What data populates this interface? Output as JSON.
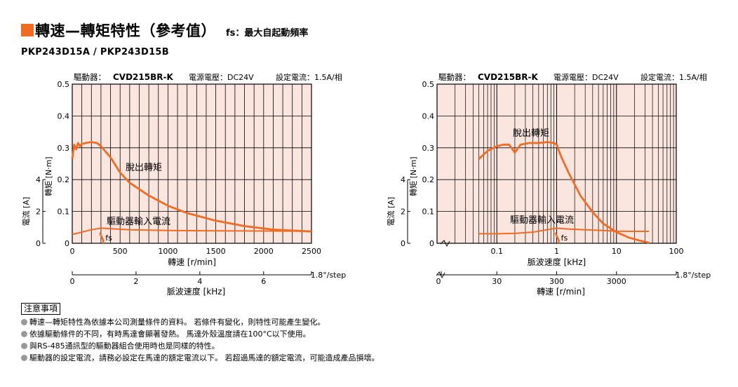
{
  "header": {
    "title": "轉速—轉矩特性（參考值）",
    "fs_note": "fs：最大自起動頻率",
    "model": "PKP243D15A / PKP243D15B",
    "accent": "#f36b21"
  },
  "notes": {
    "title": "注意事項",
    "items": [
      "轉速—轉矩特性為依據本公司測量條件的資料。 若條件有變化，則特性可能產生變化。",
      "依據驅動條件的不同，有時馬達會顯著發熱。 馬達外殼溫度請在100°C以下使用。",
      "與RS-485通訊型的驅動器組合使用時也是同樣的特性。",
      "驅動器的設定電流，請務必設定在馬達的額定電流以下。 若超過馬達的額定電流，可能造成產品損壞。"
    ]
  },
  "chart_data": [
    {
      "type": "line",
      "cond_driver_label": "驅動器：",
      "cond_driver": "CVD215BR-K",
      "cond_voltage": "電源電壓：DC24V",
      "cond_current": "設定電流：1.5A/相",
      "xlabel": "轉速 [r/min]",
      "ylabel": "轉矩 [N·m]",
      "ylabel2": "電流 [A]",
      "x2label": "脈波速度 [kHz]",
      "xlim": [
        0,
        2500
      ],
      "ylim": [
        0,
        0.5
      ],
      "xticks": [
        "0",
        "500",
        "1000",
        "1500",
        "2000",
        "2500"
      ],
      "yticks": [
        "0",
        "0.1",
        "0.2",
        "0.3",
        "0.4",
        "0.5"
      ],
      "y2ticks": [
        "0",
        "2",
        "4"
      ],
      "x2ticks": [
        "0",
        "2",
        "4",
        "6"
      ],
      "x2lim": [
        0,
        7.5
      ],
      "x2_step": "1.8°/step",
      "fs_label": "fs",
      "series": [
        {
          "name": "脫出轉矩",
          "x": [
            0,
            20,
            40,
            60,
            80,
            100,
            140,
            200,
            260,
            300,
            400,
            500,
            600,
            800,
            1000,
            1200,
            1500,
            1800,
            2100,
            2500
          ],
          "y": [
            0.265,
            0.31,
            0.295,
            0.315,
            0.305,
            0.312,
            0.315,
            0.318,
            0.315,
            0.305,
            0.27,
            0.222,
            0.19,
            0.15,
            0.118,
            0.095,
            0.071,
            0.054,
            0.043,
            0.037
          ]
        },
        {
          "name": "驅動器輸入電流",
          "x": [
            0,
            100,
            200,
            300,
            400,
            600,
            1000,
            1500,
            2000,
            2500
          ],
          "y": [
            0.55,
            0.7,
            0.85,
            0.95,
            0.92,
            0.85,
            0.8,
            0.78,
            0.77,
            0.76
          ]
        }
      ],
      "fs_value": 310
    },
    {
      "type": "line",
      "cond_driver_label": "驅動器：",
      "cond_driver": "CVD215BR-K",
      "cond_voltage": "電源電壓：DC24V",
      "cond_current": "設定電流：1.5A/相",
      "xlabel": "脈波速度 [kHz]",
      "ylabel": "轉矩 [N·m]",
      "ylabel2": "電流 [A]",
      "x2label": "轉速 [r/min]",
      "xscale": "log",
      "xlim": [
        0.01,
        100
      ],
      "ylim": [
        0,
        0.5
      ],
      "xticks": [
        "0.1",
        "1",
        "10",
        "100"
      ],
      "yticks": [
        "0",
        "0.1",
        "0.2",
        "0.3",
        "0.4",
        "0.5"
      ],
      "y2ticks": [
        "0",
        "2",
        "4"
      ],
      "x2ticks": [
        "0",
        "30",
        "300",
        "3000"
      ],
      "x2_step": "1.8°/step",
      "fs_label": "fs",
      "series": [
        {
          "name": "脫出轉矩",
          "x": [
            0.05,
            0.07,
            0.1,
            0.13,
            0.16,
            0.2,
            0.25,
            0.35,
            0.5,
            0.7,
            0.9,
            1.0,
            1.2,
            1.6,
            2.5,
            4,
            6,
            10,
            16,
            25,
            35
          ],
          "y": [
            0.265,
            0.29,
            0.305,
            0.31,
            0.31,
            0.285,
            0.31,
            0.315,
            0.315,
            0.318,
            0.315,
            0.31,
            0.27,
            0.22,
            0.15,
            0.098,
            0.062,
            0.035,
            0.018,
            0.008,
            0.002
          ]
        },
        {
          "name": "驅動器輸入電流",
          "x": [
            0.05,
            0.1,
            0.2,
            0.4,
            0.7,
            1.0,
            1.5,
            3,
            6,
            10,
            20,
            35
          ],
          "y": [
            0.6,
            0.6,
            0.62,
            0.7,
            0.85,
            0.95,
            0.9,
            0.85,
            0.8,
            0.76,
            0.75,
            0.75
          ]
        }
      ],
      "fs_value": 1.03
    }
  ]
}
